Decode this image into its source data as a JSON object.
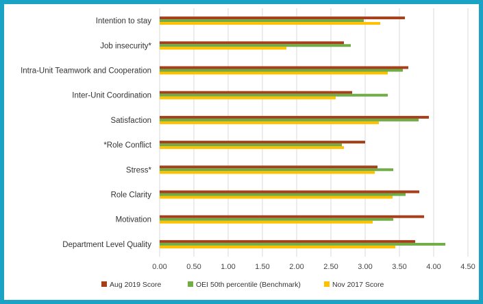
{
  "chart_data": {
    "type": "bar",
    "orientation": "horizontal",
    "categories": [
      "Intention to stay",
      "Job insecurity*",
      "Intra-Unit Teamwork and Cooperation",
      "Inter-Unit Coordination",
      "Satisfaction",
      "*Role Conflict",
      "Stress*",
      "Role Clarity",
      "Motivation",
      "Department Level Quality"
    ],
    "series": [
      {
        "name": "Aug 2019 Score",
        "color": "#a5401a",
        "values": [
          3.58,
          2.69,
          3.63,
          2.81,
          3.93,
          3.0,
          3.18,
          3.79,
          3.86,
          3.73
        ]
      },
      {
        "name": "OEI 50th percentile (Benchmark)",
        "color": "#70ad47",
        "values": [
          2.98,
          2.79,
          3.55,
          3.33,
          3.78,
          2.66,
          3.41,
          3.59,
          3.41,
          4.17
        ]
      },
      {
        "name": "Nov 2017 Score",
        "color": "#ffc000",
        "values": [
          3.22,
          1.85,
          3.33,
          2.57,
          3.2,
          2.69,
          3.14,
          3.4,
          3.11,
          3.44
        ]
      }
    ],
    "xlim": [
      0,
      4.5
    ],
    "xticks": [
      "0.00",
      "0.50",
      "1.00",
      "1.50",
      "2.00",
      "2.50",
      "3.00",
      "3.50",
      "4.00",
      "4.50"
    ],
    "grid": true,
    "legend": "bottom",
    "title": "",
    "xlabel": "",
    "ylabel": ""
  }
}
